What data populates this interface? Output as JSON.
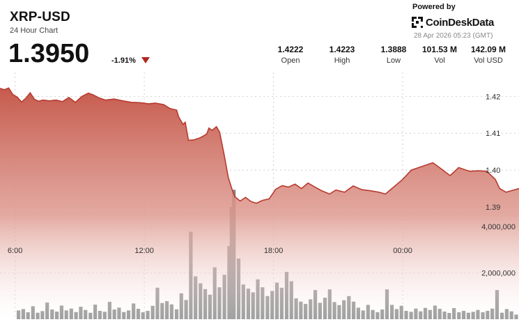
{
  "header": {
    "pair": "XRP-USD",
    "subtitle": "24 Hour Chart",
    "price": "1.3950",
    "change": "-1.91%",
    "powered_by": "Powered by",
    "brand": "CoinDeskData",
    "timestamp": "28 Apr 2026 05:23 (GMT)"
  },
  "stats": [
    {
      "value": "1.4222",
      "label": "Open"
    },
    {
      "value": "1.4223",
      "label": "High"
    },
    {
      "value": "1.3888",
      "label": "Low"
    },
    {
      "value": "101.53 M",
      "label": "Vol"
    },
    {
      "value": "142.09 M",
      "label": "Vol USD"
    }
  ],
  "colors": {
    "line": "#b73a2e",
    "area_top": "#c65a4d",
    "area_bottom": "#ffffff",
    "bars": "#8a8a8a",
    "down": "#b0261e"
  },
  "chart_data": {
    "type": "area",
    "x_unit": "hours (GMT, relative to axis)",
    "xlim": [
      5.3,
      29.4
    ],
    "price_ylim": [
      1.3845,
      1.4265
    ],
    "price_ticks": [
      {
        "v": 1.42,
        "label": "1.42"
      },
      {
        "v": 1.41,
        "label": "1.41"
      },
      {
        "v": 1.4,
        "label": "1.40"
      },
      {
        "v": 1.39,
        "label": "1.39"
      }
    ],
    "x_ticks": [
      {
        "v": 6,
        "label": "6:00"
      },
      {
        "v": 12,
        "label": "12:00"
      },
      {
        "v": 18,
        "label": "18:00"
      },
      {
        "v": 24,
        "label": "00:00"
      }
    ],
    "volume_ylim": [
      0,
      6200000
    ],
    "volume_ticks": [
      {
        "v": 4000000,
        "label": "4,000,000"
      },
      {
        "v": 2000000,
        "label": "2,000,000"
      }
    ],
    "price": [
      [
        5.3,
        1.4222
      ],
      [
        5.5,
        1.4218
      ],
      [
        5.7,
        1.4223
      ],
      [
        5.9,
        1.4205
      ],
      [
        6.1,
        1.4198
      ],
      [
        6.3,
        1.4185
      ],
      [
        6.5,
        1.4195
      ],
      [
        6.7,
        1.421
      ],
      [
        6.9,
        1.4192
      ],
      [
        7.1,
        1.4187
      ],
      [
        7.3,
        1.419
      ],
      [
        7.6,
        1.4188
      ],
      [
        7.9,
        1.419
      ],
      [
        8.2,
        1.4186
      ],
      [
        8.5,
        1.4197
      ],
      [
        8.8,
        1.4184
      ],
      [
        9.1,
        1.42
      ],
      [
        9.4,
        1.4209
      ],
      [
        9.6,
        1.4205
      ],
      [
        9.9,
        1.4196
      ],
      [
        10.2,
        1.419
      ],
      [
        10.6,
        1.4193
      ],
      [
        11,
        1.4188
      ],
      [
        11.4,
        1.4184
      ],
      [
        11.8,
        1.4183
      ],
      [
        12.2,
        1.418
      ],
      [
        12.5,
        1.4182
      ],
      [
        12.9,
        1.4178
      ],
      [
        13.2,
        1.4167
      ],
      [
        13.5,
        1.4163
      ],
      [
        13.6,
        1.4144
      ],
      [
        13.8,
        1.4124
      ],
      [
        13.9,
        1.413
      ],
      [
        14.05,
        1.4081
      ],
      [
        14.3,
        1.4082
      ],
      [
        14.6,
        1.4088
      ],
      [
        14.9,
        1.4098
      ],
      [
        15.0,
        1.4114
      ],
      [
        15.15,
        1.4108
      ],
      [
        15.35,
        1.4118
      ],
      [
        15.5,
        1.4103
      ],
      [
        15.7,
        1.4044
      ],
      [
        15.9,
        1.398
      ],
      [
        16.05,
        1.3952
      ],
      [
        16.2,
        1.3928
      ],
      [
        16.45,
        1.3916
      ],
      [
        16.7,
        1.3926
      ],
      [
        16.95,
        1.3915
      ],
      [
        17.2,
        1.391
      ],
      [
        17.5,
        1.3918
      ],
      [
        17.8,
        1.3922
      ],
      [
        18.1,
        1.3948
      ],
      [
        18.4,
        1.3958
      ],
      [
        18.7,
        1.3954
      ],
      [
        19.0,
        1.3962
      ],
      [
        19.3,
        1.395
      ],
      [
        19.6,
        1.3965
      ],
      [
        19.9,
        1.3955
      ],
      [
        20.2,
        1.3945
      ],
      [
        20.6,
        1.3935
      ],
      [
        20.9,
        1.3946
      ],
      [
        21.3,
        1.394
      ],
      [
        21.7,
        1.3957
      ],
      [
        22.1,
        1.3947
      ],
      [
        22.5,
        1.3944
      ],
      [
        22.9,
        1.394
      ],
      [
        23.2,
        1.3935
      ],
      [
        23.6,
        1.3955
      ],
      [
        24,
        1.3975
      ],
      [
        24.4,
        1.4
      ],
      [
        24.9,
        1.401
      ],
      [
        25.4,
        1.402
      ],
      [
        25.8,
        1.4003
      ],
      [
        26.2,
        1.3985
      ],
      [
        26.6,
        1.4007
      ],
      [
        27.1,
        1.3997
      ],
      [
        27.5,
        1.3998
      ],
      [
        27.9,
        1.3997
      ],
      [
        28.3,
        1.3975
      ],
      [
        28.5,
        1.395
      ],
      [
        28.8,
        1.394
      ],
      [
        29.1,
        1.3945
      ],
      [
        29.4,
        1.395
      ]
    ],
    "volume": [
      [
        6.16,
        380000
      ],
      [
        6.38,
        440000
      ],
      [
        6.6,
        300000
      ],
      [
        6.83,
        560000
      ],
      [
        7.05,
        280000
      ],
      [
        7.27,
        350000
      ],
      [
        7.49,
        720000
      ],
      [
        7.72,
        420000
      ],
      [
        7.94,
        330000
      ],
      [
        8.16,
        590000
      ],
      [
        8.38,
        380000
      ],
      [
        8.61,
        460000
      ],
      [
        8.83,
        310000
      ],
      [
        9.05,
        540000
      ],
      [
        9.27,
        400000
      ],
      [
        9.5,
        280000
      ],
      [
        9.72,
        630000
      ],
      [
        9.94,
        360000
      ],
      [
        10.16,
        320000
      ],
      [
        10.39,
        750000
      ],
      [
        10.61,
        420000
      ],
      [
        10.83,
        500000
      ],
      [
        11.05,
        310000
      ],
      [
        11.27,
        380000
      ],
      [
        11.5,
        680000
      ],
      [
        11.72,
        450000
      ],
      [
        11.94,
        300000
      ],
      [
        12.16,
        360000
      ],
      [
        12.39,
        580000
      ],
      [
        12.61,
        1360000
      ],
      [
        12.83,
        700000
      ],
      [
        13.05,
        780000
      ],
      [
        13.27,
        640000
      ],
      [
        13.5,
        430000
      ],
      [
        13.72,
        1120000
      ],
      [
        13.94,
        830000
      ],
      [
        14.16,
        3780000
      ],
      [
        14.38,
        1850000
      ],
      [
        14.61,
        1550000
      ],
      [
        14.83,
        1300000
      ],
      [
        15.05,
        1060000
      ],
      [
        15.27,
        2240000
      ],
      [
        15.49,
        1380000
      ],
      [
        15.72,
        1920000
      ],
      [
        15.94,
        3160000
      ],
      [
        16.05,
        4850000
      ],
      [
        16.16,
        5590000
      ],
      [
        16.38,
        2620000
      ],
      [
        16.6,
        1500000
      ],
      [
        16.83,
        1320000
      ],
      [
        17.05,
        1160000
      ],
      [
        17.27,
        1720000
      ],
      [
        17.49,
        1380000
      ],
      [
        17.72,
        1000000
      ],
      [
        17.94,
        1220000
      ],
      [
        18.16,
        1580000
      ],
      [
        18.38,
        1360000
      ],
      [
        18.61,
        2040000
      ],
      [
        18.83,
        1640000
      ],
      [
        19.05,
        900000
      ],
      [
        19.27,
        760000
      ],
      [
        19.49,
        660000
      ],
      [
        19.72,
        860000
      ],
      [
        19.94,
        1260000
      ],
      [
        20.16,
        710000
      ],
      [
        20.39,
        930000
      ],
      [
        20.61,
        1290000
      ],
      [
        20.83,
        740000
      ],
      [
        21.05,
        610000
      ],
      [
        21.27,
        820000
      ],
      [
        21.5,
        1000000
      ],
      [
        21.72,
        760000
      ],
      [
        21.94,
        500000
      ],
      [
        22.16,
        380000
      ],
      [
        22.39,
        620000
      ],
      [
        22.61,
        400000
      ],
      [
        22.83,
        300000
      ],
      [
        23.05,
        420000
      ],
      [
        23.27,
        1290000
      ],
      [
        23.5,
        620000
      ],
      [
        23.72,
        440000
      ],
      [
        23.94,
        580000
      ],
      [
        24.16,
        360000
      ],
      [
        24.39,
        320000
      ],
      [
        24.61,
        460000
      ],
      [
        24.83,
        340000
      ],
      [
        25.05,
        490000
      ],
      [
        25.27,
        400000
      ],
      [
        25.5,
        590000
      ],
      [
        25.72,
        450000
      ],
      [
        25.94,
        330000
      ],
      [
        26.16,
        270000
      ],
      [
        26.38,
        480000
      ],
      [
        26.61,
        300000
      ],
      [
        26.83,
        360000
      ],
      [
        27.05,
        280000
      ],
      [
        27.27,
        320000
      ],
      [
        27.49,
        400000
      ],
      [
        27.72,
        300000
      ],
      [
        27.94,
        360000
      ],
      [
        28.16,
        460000
      ],
      [
        28.38,
        1260000
      ],
      [
        28.61,
        280000
      ],
      [
        28.83,
        440000
      ],
      [
        29.05,
        340000
      ],
      [
        29.27,
        200000
      ]
    ]
  }
}
